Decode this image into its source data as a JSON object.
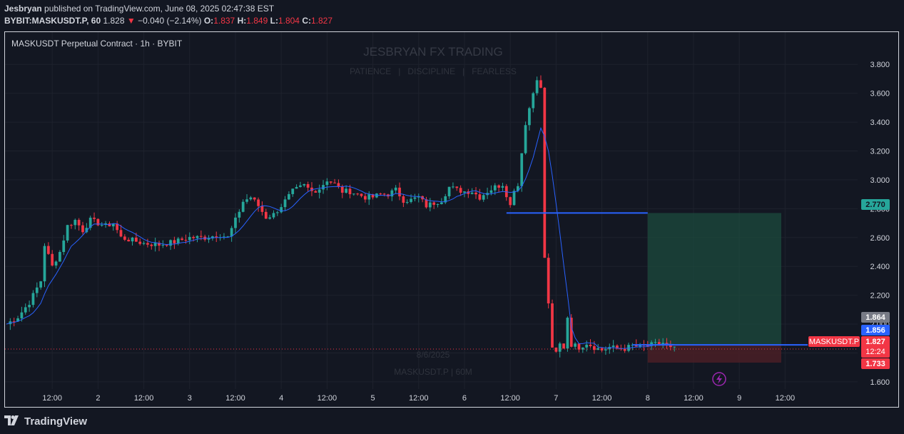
{
  "header": {
    "publisher_line": "published on TradingView.com, June 08, 2025 02:47:38 EST",
    "publisher": "Jesbryan",
    "symbol_line": "BYBIT:MASKUSDT.P, 60",
    "last": "1.828",
    "change_arrow": "▼",
    "change": "−0.040 (−2.14%)",
    "o_label": "O:",
    "o": "1.837",
    "h_label": "H:",
    "h": "1.849",
    "l_label": "L:",
    "l": "1.804",
    "c_label": "C:",
    "c": "1.827"
  },
  "chart_title": "MASKUSDT Perpetual Contract · 1h · BYBIT",
  "watermark": {
    "title": "JESBRYAN FX TRADING",
    "tagline": "PATIENCE   |   DISCIPLINE   |   FEARLESS",
    "date": "8/6/2025",
    "sub": "MASKUSDT.P | 60M"
  },
  "footer": {
    "brand": "TradingView",
    "icon": "tradingview-logo-icon"
  },
  "colors": {
    "up": "#26a69a",
    "down": "#f23645",
    "ma": "#2962ff",
    "line": "#2962ff",
    "target_zone": "#1c4b3e",
    "stop_zone": "#4a1f26",
    "bg": "#131722",
    "grid": "#1e222d"
  },
  "price_labels": {
    "target": "2.770",
    "gray": "1.864",
    "blue": "1.856",
    "symbol": "MASKUSDT.P",
    "current": "1.827",
    "countdown": "12:24",
    "stop": "1.733"
  },
  "chart_data": {
    "type": "candlestick",
    "title": "MASKUSDT Perpetual Contract · 1h · BYBIT",
    "ylim": [
      1.55,
      3.9
    ],
    "y_ticks": [
      "3.800",
      "3.600",
      "3.400",
      "3.200",
      "3.000",
      "2.800",
      "2.600",
      "2.400",
      "2.200",
      "2.000",
      "1.800",
      "1.600"
    ],
    "x_ticks": [
      "12:00",
      "2",
      "12:00",
      "3",
      "12:00",
      "4",
      "12:00",
      "5",
      "12:00",
      "6",
      "12:00",
      "7",
      "12:00",
      "8",
      "12:00",
      "9",
      "12:00"
    ],
    "x_tick_hours": [
      12,
      24,
      36,
      48,
      60,
      72,
      84,
      96,
      108,
      120,
      132,
      144,
      156,
      168,
      180,
      192,
      204
    ],
    "series_close": [
      [
        0,
        2.0
      ],
      [
        3,
        2.05
      ],
      [
        6,
        2.15
      ],
      [
        9,
        2.3
      ],
      [
        10,
        2.55
      ],
      [
        12,
        2.4
      ],
      [
        14,
        2.5
      ],
      [
        16,
        2.68
      ],
      [
        18,
        2.72
      ],
      [
        20,
        2.65
      ],
      [
        22,
        2.72
      ],
      [
        24,
        2.7
      ],
      [
        26,
        2.68
      ],
      [
        28,
        2.7
      ],
      [
        30,
        2.6
      ],
      [
        33,
        2.58
      ],
      [
        36,
        2.56
      ],
      [
        40,
        2.55
      ],
      [
        44,
        2.57
      ],
      [
        48,
        2.6
      ],
      [
        52,
        2.6
      ],
      [
        56,
        2.62
      ],
      [
        58,
        2.6
      ],
      [
        60,
        2.72
      ],
      [
        62,
        2.85
      ],
      [
        64,
        2.88
      ],
      [
        66,
        2.82
      ],
      [
        68,
        2.74
      ],
      [
        70,
        2.76
      ],
      [
        72,
        2.82
      ],
      [
        75,
        2.92
      ],
      [
        78,
        2.96
      ],
      [
        80,
        2.92
      ],
      [
        82,
        2.94
      ],
      [
        84,
        3.0
      ],
      [
        86,
        2.97
      ],
      [
        88,
        2.92
      ],
      [
        90,
        2.92
      ],
      [
        92,
        2.9
      ],
      [
        94,
        2.88
      ],
      [
        96,
        2.88
      ],
      [
        98,
        2.9
      ],
      [
        100,
        2.9
      ],
      [
        102,
        2.93
      ],
      [
        104,
        2.86
      ],
      [
        106,
        2.86
      ],
      [
        108,
        2.88
      ],
      [
        110,
        2.82
      ],
      [
        112,
        2.84
      ],
      [
        114,
        2.86
      ],
      [
        116,
        2.95
      ],
      [
        118,
        2.93
      ],
      [
        120,
        2.92
      ],
      [
        122,
        2.92
      ],
      [
        124,
        2.88
      ],
      [
        126,
        2.92
      ],
      [
        128,
        2.95
      ],
      [
        130,
        2.97
      ],
      [
        131,
        2.9
      ],
      [
        132,
        2.82
      ],
      [
        133,
        2.94
      ],
      [
        134,
        2.96
      ],
      [
        135,
        3.2
      ],
      [
        136,
        3.38
      ],
      [
        137,
        3.5
      ],
      [
        138,
        3.62
      ],
      [
        139,
        3.68
      ],
      [
        140,
        3.64
      ],
      [
        141,
        2.45
      ],
      [
        142,
        2.15
      ],
      [
        143,
        1.82
      ],
      [
        144,
        1.8
      ],
      [
        145,
        1.86
      ],
      [
        146,
        1.84
      ],
      [
        147,
        2.05
      ],
      [
        148,
        1.86
      ],
      [
        150,
        1.84
      ],
      [
        152,
        1.87
      ],
      [
        154,
        1.84
      ],
      [
        156,
        1.82
      ],
      [
        158,
        1.84
      ],
      [
        160,
        1.83
      ],
      [
        162,
        1.83
      ],
      [
        164,
        1.85
      ],
      [
        166,
        1.84
      ],
      [
        168,
        1.85
      ],
      [
        170,
        1.86
      ],
      [
        172,
        1.87
      ],
      [
        174,
        1.83
      ],
      [
        175,
        1.827
      ]
    ],
    "levels": {
      "entry_line": 1.856,
      "target": 2.77,
      "stop": 1.733,
      "current": 1.827
    },
    "grid": true,
    "legend": "none"
  }
}
